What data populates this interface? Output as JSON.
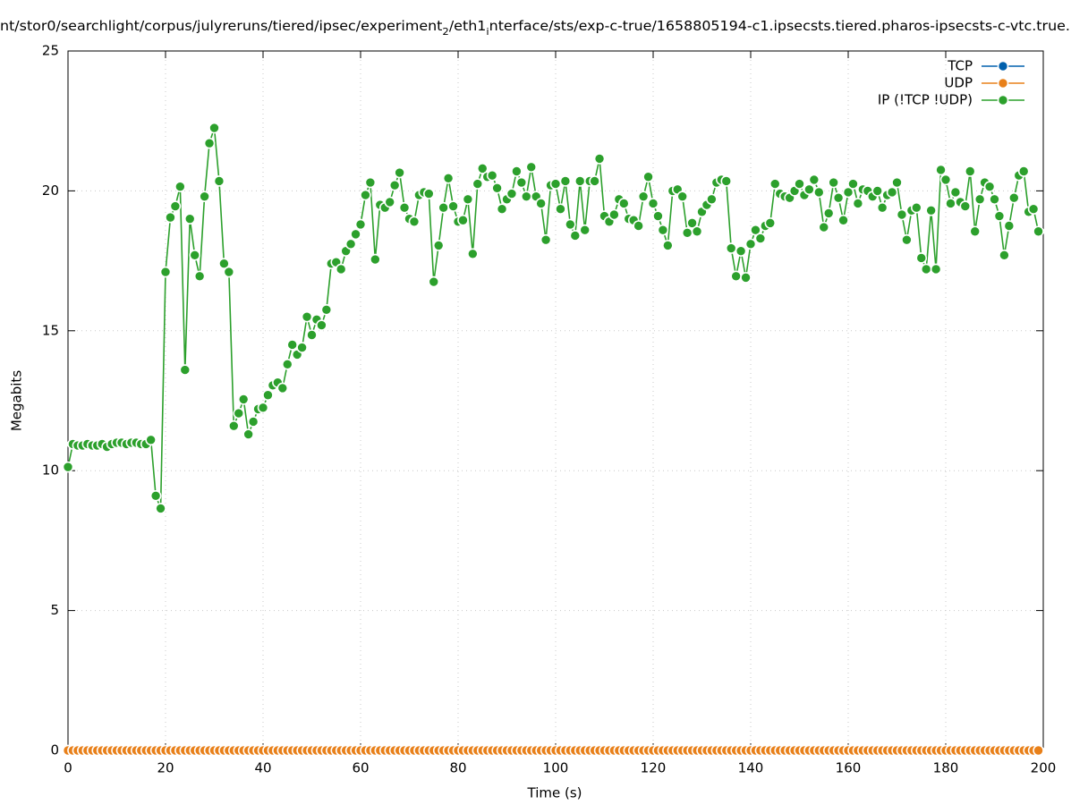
{
  "chart_data": {
    "type": "line",
    "title_parts": [
      "nt/stor0/searchlight/corpus/julyreruns/tiered/ipsec/experiment",
      "2",
      "/eth1",
      "i",
      "nterface/sts/exp-c-true/1658805194-c1.ipsecsts.tiered.pharos-ipsecsts-c-vtc.true."
    ],
    "xlabel": "Time (s)",
    "ylabel": "Megabits",
    "xlim": [
      0,
      200
    ],
    "xticks": [
      0,
      20,
      40,
      60,
      80,
      100,
      120,
      140,
      160,
      180,
      200
    ],
    "ylim": [
      0,
      25
    ],
    "yticks": [
      0,
      5,
      10,
      15,
      20,
      25
    ],
    "grid": true,
    "legend": "top-right",
    "x": [
      0,
      1,
      2,
      3,
      4,
      5,
      6,
      7,
      8,
      9,
      10,
      11,
      12,
      13,
      14,
      15,
      16,
      17,
      18,
      19,
      20,
      21,
      22,
      23,
      24,
      25,
      26,
      27,
      28,
      29,
      30,
      31,
      32,
      33,
      34,
      35,
      36,
      37,
      38,
      39,
      40,
      41,
      42,
      43,
      44,
      45,
      46,
      47,
      48,
      49,
      50,
      51,
      52,
      53,
      54,
      55,
      56,
      57,
      58,
      59,
      60,
      61,
      62,
      63,
      64,
      65,
      66,
      67,
      68,
      69,
      70,
      71,
      72,
      73,
      74,
      75,
      76,
      77,
      78,
      79,
      80,
      81,
      82,
      83,
      84,
      85,
      86,
      87,
      88,
      89,
      90,
      91,
      92,
      93,
      94,
      95,
      96,
      97,
      98,
      99,
      100,
      101,
      102,
      103,
      104,
      105,
      106,
      107,
      108,
      109,
      110,
      111,
      112,
      113,
      114,
      115,
      116,
      117,
      118,
      119,
      120,
      121,
      122,
      123,
      124,
      125,
      126,
      127,
      128,
      129,
      130,
      131,
      132,
      133,
      134,
      135,
      136,
      137,
      138,
      139,
      140,
      141,
      142,
      143,
      144,
      145,
      146,
      147,
      148,
      149,
      150,
      151,
      152,
      153,
      154,
      155,
      156,
      157,
      158,
      159,
      160,
      161,
      162,
      163,
      164,
      165,
      166,
      167,
      168,
      169,
      170,
      171,
      172,
      173,
      174,
      175,
      176,
      177,
      178,
      179,
      180,
      181,
      182,
      183,
      184,
      185,
      186,
      187,
      188,
      189,
      190,
      191,
      192,
      193,
      194,
      195,
      196,
      197,
      198,
      199
    ],
    "series": [
      {
        "name": "TCP",
        "color": "#0060ad",
        "values": [
          0,
          0,
          0,
          0,
          0,
          0,
          0,
          0,
          0,
          0,
          0,
          0,
          0,
          0,
          0,
          0,
          0,
          0,
          0,
          0,
          0,
          0,
          0,
          0,
          0,
          0,
          0,
          0,
          0,
          0,
          0,
          0,
          0,
          0,
          0,
          0,
          0,
          0,
          0,
          0,
          0,
          0,
          0,
          0,
          0,
          0,
          0,
          0,
          0,
          0,
          0,
          0,
          0,
          0,
          0,
          0,
          0,
          0,
          0,
          0,
          0,
          0,
          0,
          0,
          0,
          0,
          0,
          0,
          0,
          0,
          0,
          0,
          0,
          0,
          0,
          0,
          0,
          0,
          0,
          0,
          0,
          0,
          0,
          0,
          0,
          0,
          0,
          0,
          0,
          0,
          0,
          0,
          0,
          0,
          0,
          0,
          0,
          0,
          0,
          0,
          0,
          0,
          0,
          0,
          0,
          0,
          0,
          0,
          0,
          0,
          0,
          0,
          0,
          0,
          0,
          0,
          0,
          0,
          0,
          0,
          0,
          0,
          0,
          0,
          0,
          0,
          0,
          0,
          0,
          0,
          0,
          0,
          0,
          0,
          0,
          0,
          0,
          0,
          0,
          0,
          0,
          0,
          0,
          0,
          0,
          0,
          0,
          0,
          0,
          0,
          0,
          0,
          0,
          0,
          0,
          0,
          0,
          0,
          0,
          0,
          0,
          0,
          0,
          0,
          0,
          0,
          0,
          0,
          0,
          0,
          0,
          0,
          0,
          0,
          0,
          0,
          0,
          0,
          0,
          0,
          0,
          0,
          0,
          0,
          0,
          0,
          0,
          0,
          0,
          0,
          0,
          0,
          0,
          0,
          0,
          0,
          0,
          0,
          0,
          0
        ]
      },
      {
        "name": "UDP",
        "color": "#e8801a",
        "values": [
          0,
          0,
          0,
          0,
          0,
          0,
          0,
          0,
          0,
          0,
          0,
          0,
          0,
          0,
          0,
          0,
          0,
          0,
          0,
          0,
          0,
          0,
          0,
          0,
          0,
          0,
          0,
          0,
          0,
          0,
          0,
          0,
          0,
          0,
          0,
          0,
          0,
          0,
          0,
          0,
          0,
          0,
          0,
          0,
          0,
          0,
          0,
          0,
          0,
          0,
          0,
          0,
          0,
          0,
          0,
          0,
          0,
          0,
          0,
          0,
          0,
          0,
          0,
          0,
          0,
          0,
          0,
          0,
          0,
          0,
          0,
          0,
          0,
          0,
          0,
          0,
          0,
          0,
          0,
          0,
          0,
          0,
          0,
          0,
          0,
          0,
          0,
          0,
          0,
          0,
          0,
          0,
          0,
          0,
          0,
          0,
          0,
          0,
          0,
          0,
          0,
          0,
          0,
          0,
          0,
          0,
          0,
          0,
          0,
          0,
          0,
          0,
          0,
          0,
          0,
          0,
          0,
          0,
          0,
          0,
          0,
          0,
          0,
          0,
          0,
          0,
          0,
          0,
          0,
          0,
          0,
          0,
          0,
          0,
          0,
          0,
          0,
          0,
          0,
          0,
          0,
          0,
          0,
          0,
          0,
          0,
          0,
          0,
          0,
          0,
          0,
          0,
          0,
          0,
          0,
          0,
          0,
          0,
          0,
          0,
          0,
          0,
          0,
          0,
          0,
          0,
          0,
          0,
          0,
          0,
          0,
          0,
          0,
          0,
          0,
          0,
          0,
          0,
          0,
          0,
          0,
          0,
          0,
          0,
          0,
          0,
          0,
          0,
          0,
          0,
          0,
          0,
          0,
          0,
          0,
          0,
          0,
          0,
          0,
          0
        ]
      },
      {
        "name": "IP (!TCP  !UDP)",
        "color": "#2ca02c",
        "values": [
          10.13,
          10.95,
          10.9,
          10.9,
          10.95,
          10.9,
          10.9,
          10.95,
          10.85,
          10.95,
          11.0,
          11.0,
          10.95,
          11.0,
          11.0,
          10.95,
          10.95,
          11.1,
          9.1,
          8.65,
          17.1,
          19.05,
          19.45,
          20.15,
          13.6,
          19.0,
          17.7,
          16.95,
          19.8,
          21.7,
          22.25,
          20.35,
          17.4,
          17.1,
          11.6,
          12.05,
          12.55,
          11.3,
          11.75,
          12.2,
          12.25,
          12.7,
          13.05,
          13.15,
          12.95,
          13.8,
          14.5,
          14.15,
          14.4,
          15.5,
          14.85,
          15.4,
          15.2,
          15.75,
          17.4,
          17.45,
          17.2,
          17.85,
          18.1,
          18.45,
          18.8,
          19.85,
          20.3,
          17.55,
          19.5,
          19.4,
          19.6,
          20.2,
          20.65,
          19.4,
          19.0,
          18.9,
          19.85,
          19.95,
          19.9,
          16.75,
          18.05,
          19.4,
          20.45,
          19.45,
          18.9,
          18.95,
          19.7,
          17.75,
          20.25,
          20.8,
          20.5,
          20.55,
          20.1,
          19.35,
          19.7,
          19.9,
          20.7,
          20.3,
          19.8,
          20.85,
          19.8,
          19.55,
          18.25,
          20.2,
          20.25,
          19.35,
          20.35,
          18.8,
          18.4,
          20.35,
          18.6,
          20.35,
          20.35,
          21.15,
          19.1,
          18.9,
          19.15,
          19.7,
          19.55,
          19.0,
          18.95,
          18.75,
          19.8,
          20.5,
          19.55,
          19.1,
          18.6,
          18.05,
          20.0,
          20.05,
          19.8,
          18.5,
          18.85,
          18.55,
          19.25,
          19.5,
          19.7,
          20.3,
          20.4,
          20.35,
          17.95,
          16.95,
          17.85,
          16.9,
          18.1,
          18.6,
          18.3,
          18.75,
          18.85,
          20.25,
          19.9,
          19.8,
          19.75,
          20.0,
          20.25,
          19.85,
          20.05,
          20.4,
          19.95,
          18.7,
          19.2,
          20.3,
          19.75,
          18.95,
          19.95,
          20.25,
          19.55,
          20.05,
          20.0,
          19.8,
          20.0,
          19.4,
          19.85,
          19.95,
          20.3,
          19.15,
          18.25,
          19.3,
          19.4,
          17.6,
          17.2,
          19.3,
          17.2,
          20.75,
          20.4,
          19.55,
          19.95,
          19.6,
          19.45,
          20.7,
          18.55,
          19.7,
          20.3,
          20.15,
          19.7,
          19.1,
          17.7,
          18.75,
          19.75,
          20.55,
          20.7,
          19.25,
          19.35,
          18.55
        ]
      }
    ]
  }
}
